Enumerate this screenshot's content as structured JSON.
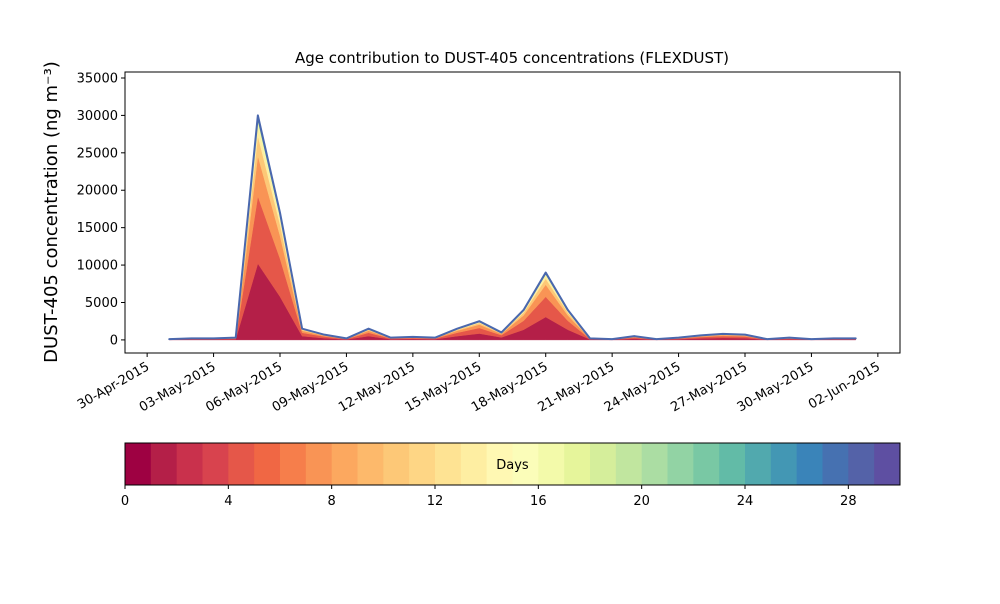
{
  "chart_data": {
    "type": "stackedarea",
    "title": "Age contribution to DUST-405 concentrations (FLEXDUST)",
    "y_label": "DUST-405 concentration (ng m⁻³)",
    "x": [
      "2015-05-01",
      "2015-05-02",
      "2015-05-03",
      "2015-05-04",
      "2015-05-05",
      "2015-05-06",
      "2015-05-07",
      "2015-05-08",
      "2015-05-09",
      "2015-05-10",
      "2015-05-11",
      "2015-05-12",
      "2015-05-13",
      "2015-05-14",
      "2015-05-15",
      "2015-05-16",
      "2015-05-17",
      "2015-05-18",
      "2015-05-19",
      "2015-05-20",
      "2015-05-21",
      "2015-05-22",
      "2015-05-23",
      "2015-05-24",
      "2015-05-25",
      "2015-05-26",
      "2015-05-27",
      "2015-05-28",
      "2015-05-29",
      "2015-05-30",
      "2015-05-31",
      "2015-06-01"
    ],
    "series": [
      {
        "color": "#b41f48",
        "values": [
          34,
          68,
          68,
          102,
          10200,
          5780,
          510,
          238,
          68,
          510,
          102,
          136,
          102,
          510,
          850,
          340,
          1360,
          3060,
          1360,
          68,
          34,
          170,
          34,
          102,
          204,
          272,
          238,
          34,
          102,
          34,
          68,
          68
        ]
      },
      {
        "color": "#e55749",
        "values": [
          30,
          60,
          60,
          90,
          9000,
          5100,
          450,
          210,
          60,
          450,
          90,
          120,
          90,
          450,
          750,
          300,
          1200,
          2700,
          1200,
          60,
          30,
          150,
          30,
          90,
          180,
          240,
          210,
          30,
          90,
          30,
          60,
          60
        ]
      },
      {
        "color": "#f99455",
        "values": [
          18,
          36,
          36,
          54,
          5400,
          3060,
          270,
          126,
          36,
          270,
          54,
          72,
          54,
          270,
          450,
          180,
          720,
          1620,
          720,
          36,
          18,
          90,
          18,
          54,
          108,
          144,
          126,
          18,
          54,
          18,
          36,
          36
        ]
      },
      {
        "color": "#fdc877",
        "values": [
          9,
          18,
          18,
          27,
          2700,
          1530,
          135,
          63,
          18,
          135,
          27,
          36,
          27,
          135,
          225,
          90,
          360,
          810,
          360,
          18,
          9,
          45,
          9,
          27,
          54,
          72,
          63,
          9,
          27,
          9,
          18,
          18
        ]
      },
      {
        "color": "#feeea2",
        "values": [
          5,
          9,
          9,
          14,
          1350,
          765,
          68,
          32,
          9,
          68,
          14,
          18,
          14,
          68,
          113,
          45,
          180,
          405,
          180,
          9,
          5,
          23,
          5,
          14,
          27,
          36,
          32,
          5,
          14,
          5,
          9,
          9
        ]
      },
      {
        "color": "#f3faaa",
        "values": [
          2,
          4,
          4,
          6,
          600,
          340,
          30,
          14,
          4,
          30,
          6,
          8,
          6,
          30,
          50,
          20,
          80,
          180,
          80,
          4,
          2,
          10,
          2,
          6,
          12,
          16,
          14,
          2,
          6,
          2,
          4,
          4
        ]
      },
      {
        "color": "#c1e69f",
        "values": [
          1,
          2,
          2,
          3,
          300,
          170,
          15,
          7,
          2,
          15,
          3,
          4,
          3,
          15,
          25,
          10,
          40,
          90,
          40,
          2,
          1,
          5,
          1,
          3,
          6,
          8,
          7,
          1,
          3,
          1,
          2,
          2
        ]
      },
      {
        "color": "#79c8a4",
        "values": [
          1,
          1,
          1,
          2,
          210,
          119,
          11,
          5,
          1,
          11,
          2,
          3,
          2,
          11,
          18,
          7,
          28,
          63,
          28,
          1,
          1,
          4,
          1,
          2,
          4,
          6,
          5,
          1,
          2,
          1,
          1,
          1
        ]
      },
      {
        "color": "#4397b4",
        "values": [
          0,
          1,
          1,
          2,
          150,
          85,
          8,
          4,
          1,
          8,
          2,
          2,
          2,
          8,
          13,
          5,
          20,
          45,
          20,
          1,
          0,
          3,
          0,
          2,
          3,
          4,
          4,
          0,
          2,
          0,
          1,
          1
        ]
      },
      {
        "color": "#4a68ae",
        "values": [
          0,
          1,
          1,
          1,
          90,
          51,
          5,
          2,
          1,
          5,
          1,
          1,
          1,
          5,
          8,
          3,
          12,
          27,
          12,
          1,
          0,
          2,
          0,
          1,
          2,
          2,
          2,
          0,
          1,
          0,
          1,
          1
        ]
      }
    ],
    "xlim": [
      "2015-04-29",
      "2015-06-03"
    ],
    "xticks": [
      {
        "value": "2015-04-30",
        "label": "30-Apr-2015"
      },
      {
        "value": "2015-05-03",
        "label": "03-May-2015"
      },
      {
        "value": "2015-05-06",
        "label": "06-May-2015"
      },
      {
        "value": "2015-05-09",
        "label": "09-May-2015"
      },
      {
        "value": "2015-05-12",
        "label": "12-May-2015"
      },
      {
        "value": "2015-05-15",
        "label": "15-May-2015"
      },
      {
        "value": "2015-05-18",
        "label": "18-May-2015"
      },
      {
        "value": "2015-05-21",
        "label": "21-May-2015"
      },
      {
        "value": "2015-05-24",
        "label": "24-May-2015"
      },
      {
        "value": "2015-05-27",
        "label": "27-May-2015"
      },
      {
        "value": "2015-05-30",
        "label": "30-May-2015"
      },
      {
        "value": "2015-06-02",
        "label": "02-Jun-2015"
      }
    ],
    "ylim": [
      -1750,
      35800
    ],
    "yticks": [
      0,
      5000,
      10000,
      15000,
      20000,
      25000,
      30000,
      35000
    ],
    "colorbar": {
      "label": "Days",
      "lim": [
        0,
        30
      ],
      "ticks": [
        0,
        4,
        8,
        12,
        16,
        20,
        24,
        28
      ],
      "colors": [
        "#9e0142",
        "#b41f48",
        "#c9314c",
        "#d8434e",
        "#e55749",
        "#f06744",
        "#f67e4b",
        "#f99455",
        "#fca85f",
        "#fdb96b",
        "#fdc877",
        "#fed685",
        "#fee393",
        "#feeea2",
        "#fff8b3",
        "#fbfdb9",
        "#f3faaa",
        "#e6f59b",
        "#d5ee9b",
        "#c1e69f",
        "#abdda3",
        "#92d3a4",
        "#79c8a4",
        "#62bba7",
        "#51a9ae",
        "#4397b4",
        "#3a84b9",
        "#4671b1",
        "#5462a8",
        "#5e4fa2"
      ]
    }
  }
}
